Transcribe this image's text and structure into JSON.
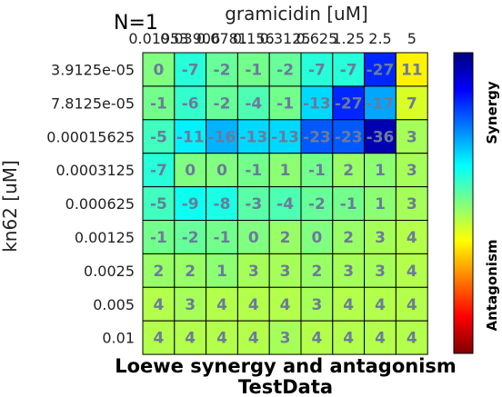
{
  "chart_data": {
    "type": "heatmap",
    "n_label": "N=1",
    "xlabel": "gramicidin [uM]",
    "ylabel": "kn62 [uM]",
    "title": "Loewe synergy and antagonism",
    "subtitle": "TestData",
    "x": [
      "0.01953",
      "0.03906",
      "0.0781",
      "0.156",
      "0.3125",
      "0.625",
      "1.25",
      "2.5",
      "5"
    ],
    "y": [
      "3.9125e-05",
      "7.8125e-05",
      "0.00015625",
      "0.0003125",
      "0.000625",
      "0.00125",
      "0.0025",
      "0.005",
      "0.01"
    ],
    "values": [
      [
        0,
        -7,
        -2,
        -1,
        -2,
        -7,
        -7,
        -27,
        11
      ],
      [
        -1,
        -6,
        -2,
        -4,
        -1,
        -13,
        -27,
        -17,
        7
      ],
      [
        -5,
        -11,
        -16,
        -13,
        -13,
        -23,
        -23,
        -36,
        3
      ],
      [
        -7,
        0,
        0,
        -1,
        1,
        -1,
        2,
        1,
        3
      ],
      [
        -5,
        -9,
        -8,
        -3,
        -4,
        -2,
        -1,
        1,
        3
      ],
      [
        -1,
        -2,
        -1,
        0,
        2,
        0,
        2,
        3,
        4
      ],
      [
        2,
        2,
        1,
        3,
        3,
        2,
        3,
        3,
        4
      ],
      [
        4,
        3,
        4,
        4,
        4,
        3,
        4,
        4,
        4
      ],
      [
        4,
        4,
        4,
        4,
        3,
        4,
        4,
        4,
        4
      ]
    ],
    "colorbar": {
      "labels": [
        "Synergy",
        "Antagonism"
      ],
      "range": [
        -40,
        40
      ],
      "colormap": "jet"
    }
  }
}
